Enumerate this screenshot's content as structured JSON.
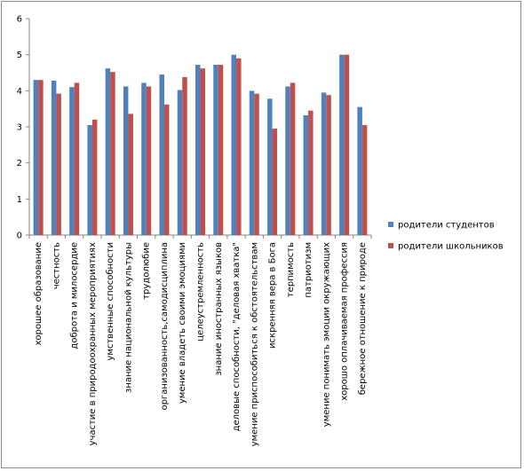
{
  "chart_data": {
    "type": "bar",
    "title": "",
    "xlabel": "",
    "ylabel": "",
    "ylim": [
      0,
      6
    ],
    "yticks": [
      "0",
      "1",
      "2",
      "3",
      "4",
      "5",
      "6"
    ],
    "grid": false,
    "legend_position": "right",
    "categories": [
      "хорошее образование",
      "честность",
      "доброта и милосердие",
      "участие в природоохранных мероприятиях",
      "умственные способности",
      "знание национальной культуры",
      "трудолюбие",
      "организованность,самодисциплина",
      "умение владеть своими эмоциями",
      "целеустремленность",
      "знание иностранных языков",
      "деловые способности, \"деловая хватка\"",
      "умение приспособиться к обстоятельствам",
      "искренняя вера в Бога",
      "терпимость",
      "патриотизм",
      "умение понимать эмоции окружающих",
      "хорошо оплачиваемая профессия",
      "бережное отношение к природе"
    ],
    "series": [
      {
        "name": "родители студентов",
        "color": "#4f81bd",
        "values": [
          4.3,
          4.28,
          4.1,
          3.05,
          4.62,
          4.12,
          4.22,
          4.45,
          4.02,
          4.72,
          4.72,
          5.0,
          4.0,
          3.78,
          4.12,
          3.32,
          3.95,
          5.0,
          3.55
        ]
      },
      {
        "name": "родители школьников",
        "color": "#c0504d",
        "values": [
          4.3,
          3.92,
          4.22,
          3.2,
          4.52,
          3.36,
          4.12,
          3.62,
          4.38,
          4.62,
          4.72,
          4.9,
          3.92,
          2.95,
          4.22,
          3.45,
          3.88,
          5.0,
          3.05
        ]
      }
    ]
  }
}
